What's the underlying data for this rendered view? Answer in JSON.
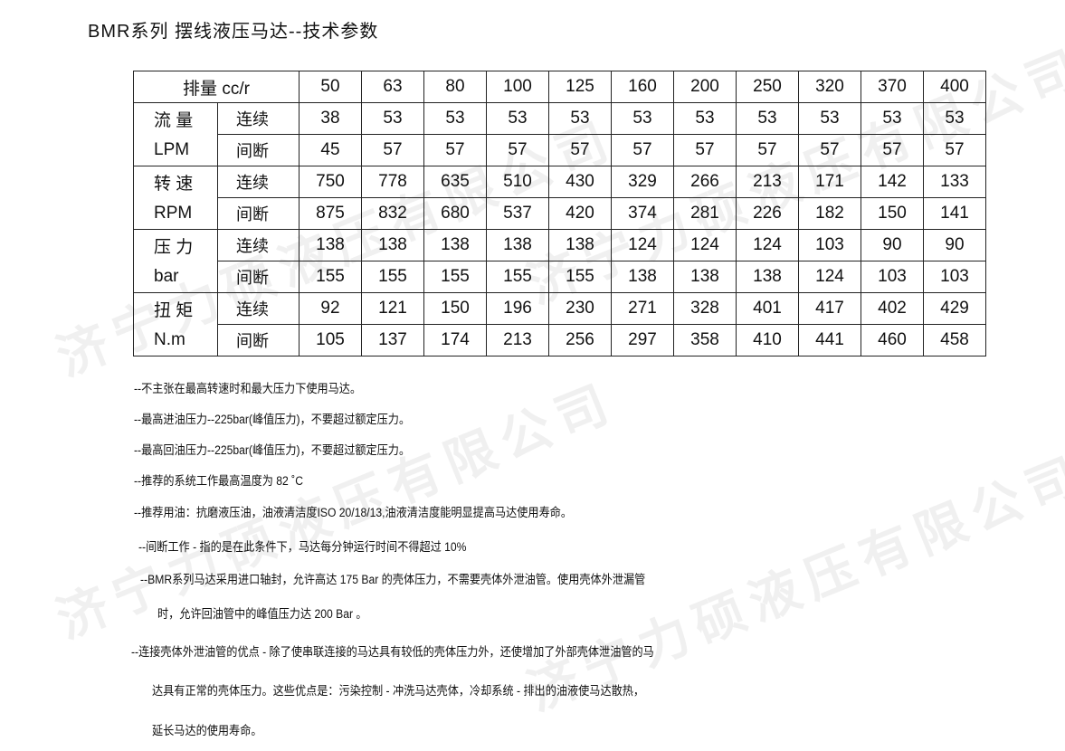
{
  "title": "BMR系列 摆线液压马达--技术参数",
  "watermark": "济宁力硕液压有限公司",
  "table": {
    "header_label": "排量 cc/r",
    "displacements": [
      "50",
      "63",
      "80",
      "100",
      "125",
      "160",
      "200",
      "250",
      "320",
      "370",
      "400"
    ],
    "groups": [
      {
        "name": "流 量",
        "unit": "LPM",
        "rows": [
          {
            "mode": "连续",
            "values": [
              "38",
              "53",
              "53",
              "53",
              "53",
              "53",
              "53",
              "53",
              "53",
              "53",
              "53"
            ]
          },
          {
            "mode": "间断",
            "values": [
              "45",
              "57",
              "57",
              "57",
              "57",
              "57",
              "57",
              "57",
              "57",
              "57",
              "57"
            ]
          }
        ]
      },
      {
        "name": "转 速",
        "unit": "RPM",
        "rows": [
          {
            "mode": "连续",
            "values": [
              "750",
              "778",
              "635",
              "510",
              "430",
              "329",
              "266",
              "213",
              "171",
              "142",
              "133"
            ]
          },
          {
            "mode": "间断",
            "values": [
              "875",
              "832",
              "680",
              "537",
              "420",
              "374",
              "281",
              "226",
              "182",
              "150",
              "141"
            ]
          }
        ]
      },
      {
        "name": "压 力",
        "unit": "bar",
        "rows": [
          {
            "mode": "连续",
            "values": [
              "138",
              "138",
              "138",
              "138",
              "138",
              "124",
              "124",
              "124",
              "103",
              "90",
              "90"
            ]
          },
          {
            "mode": "间断",
            "values": [
              "155",
              "155",
              "155",
              "155",
              "155",
              "138",
              "138",
              "138",
              "124",
              "103",
              "103"
            ]
          }
        ]
      },
      {
        "name": "扭 矩",
        "unit": "N.m",
        "rows": [
          {
            "mode": "连续",
            "values": [
              "92",
              "121",
              "150",
              "196",
              "230",
              "271",
              "328",
              "401",
              "417",
              "402",
              "429"
            ]
          },
          {
            "mode": "间断",
            "values": [
              "105",
              "137",
              "174",
              "213",
              "256",
              "297",
              "358",
              "410",
              "441",
              "460",
              "458"
            ]
          }
        ]
      }
    ]
  },
  "notes": [
    "--不主张在最高转速时和最大压力下使用马达。",
    "--最高进油压力--225bar(峰值压力)，不要超过额定压力。",
    "--最高回油压力--225bar(峰值压力)，不要超过额定压力。",
    "--推荐的系统工作最高温度为 82 ˚C",
    "--推荐用油：抗磨液压油，油液清洁度ISO 20/18/13,油液清洁度能明显提高马达使用寿命。",
    "--间断工作 - 指的是在此条件下，马达每分钟运行时间不得超过 10%",
    "--BMR系列马达采用进口轴封，允许高达 175 Bar 的壳体压力，不需要壳体外泄油管。使用壳体外泄漏管",
    "时，允许回油管中的峰值压力达 200 Bar 。",
    "--连接壳体外泄油管的优点 - 除了使串联连接的马达具有较低的壳体压力外，还使增加了外部壳体泄油管的马",
    "达具有正常的壳体压力。这些优点是：污染控制 - 冲洗马达壳体，冷却系统 - 排出的油液使马达散热，",
    "延长马达的使用寿命。"
  ]
}
